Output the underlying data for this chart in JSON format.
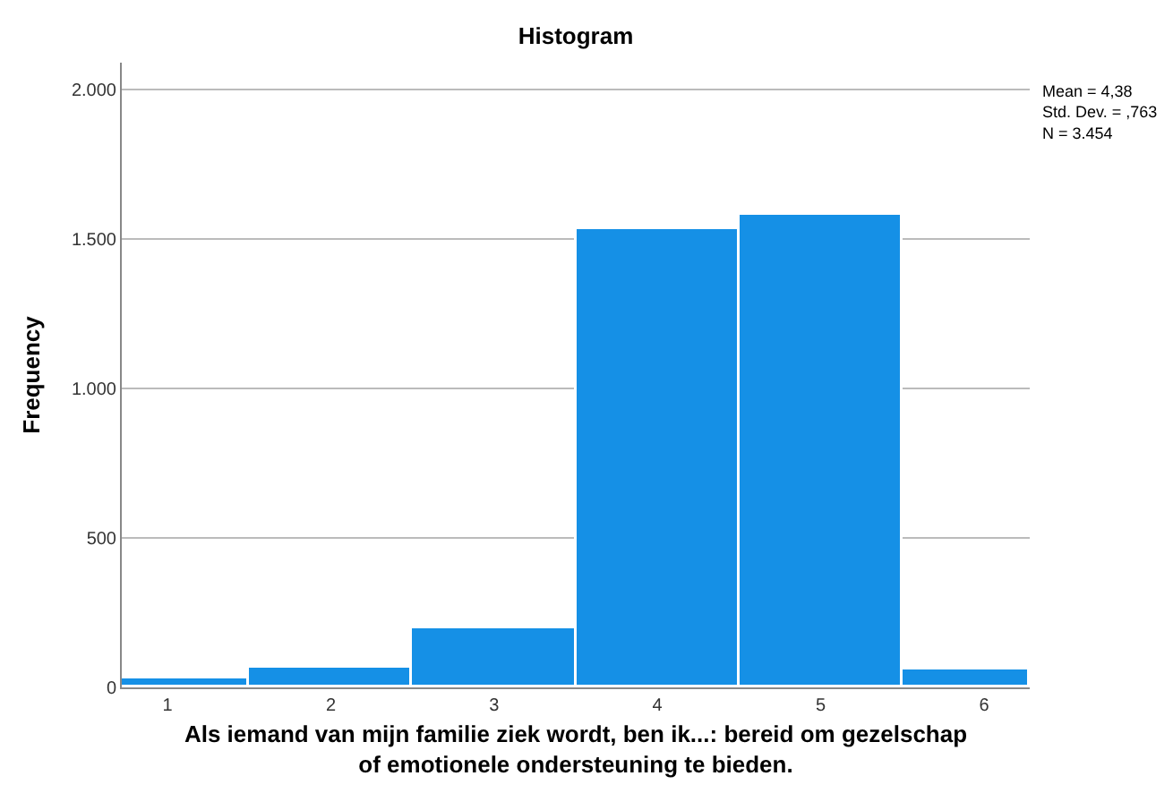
{
  "chart_data": {
    "type": "histogram",
    "title": "Histogram",
    "xlabel": "Als iemand van mijn familie ziek wordt, ben ik...: bereid om gezelschap\nof emotionele ondersteuning te bieden.",
    "ylabel": "Frequency",
    "bins": [
      0.72,
      1.5,
      2.5,
      3.5,
      4.5,
      5.5,
      6.28
    ],
    "values": [
      28,
      64,
      199,
      1531,
      1579,
      60
    ],
    "color": "#1590e6",
    "xlim": [
      0.72,
      6.28
    ],
    "xticks": [
      1,
      2,
      3,
      4,
      5,
      6
    ],
    "ylim": [
      0,
      2090
    ],
    "yticks": [
      0,
      {
        "value": 500,
        "label": "500"
      },
      {
        "value": 1000,
        "label": "1.000"
      },
      {
        "value": 1500,
        "label": "1.500"
      },
      {
        "value": 2000,
        "label": "2.000"
      }
    ],
    "grid": "y",
    "annotations": [
      "Mean = 4,38\nStd. Dev. = ,763\nN = 3.454"
    ]
  }
}
